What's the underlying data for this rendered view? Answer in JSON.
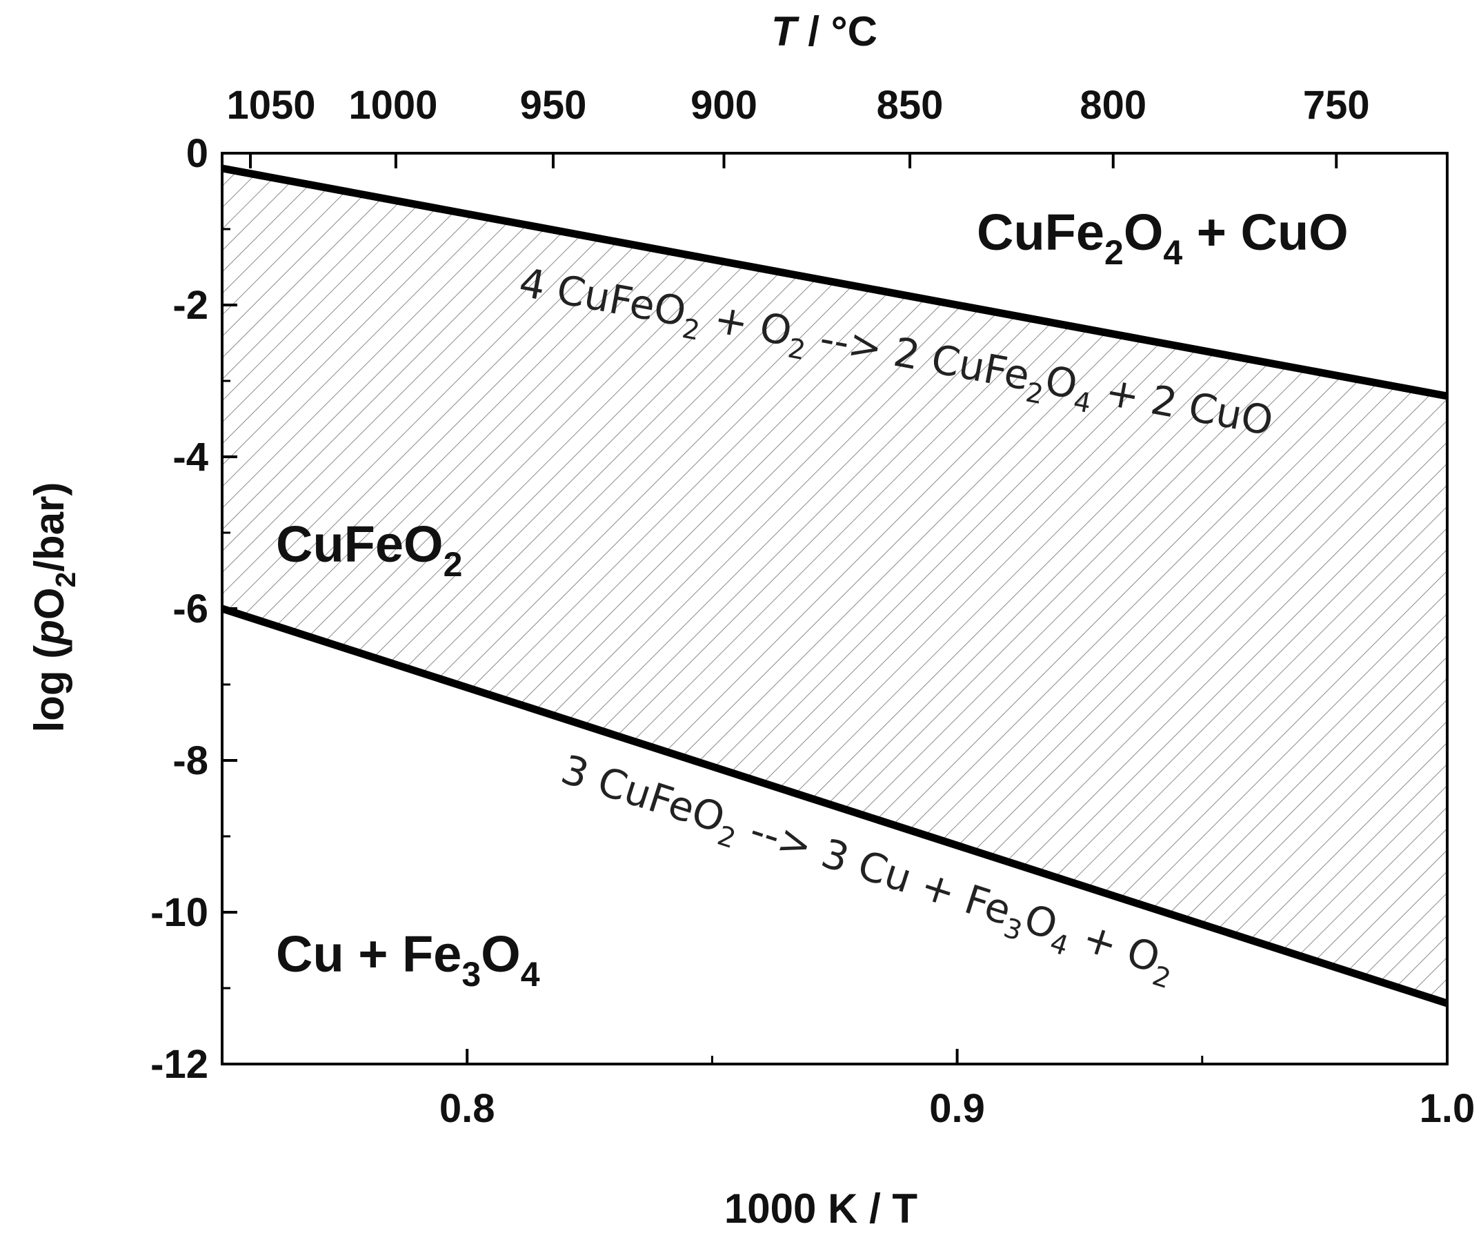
{
  "chart_data": {
    "type": "line",
    "xlabel": "1000 K / T",
    "ylabel_parts": [
      {
        "text": "log (",
        "style": "normal"
      },
      {
        "text": "p",
        "style": "italic"
      },
      {
        "text": "O",
        "style": "normal"
      },
      {
        "text": "2",
        "style": "sub"
      },
      {
        "text": "/bar)",
        "style": "normal"
      }
    ],
    "top_axis_label": {
      "italic": "T",
      "rest": " / °C"
    },
    "xlim": [
      0.75,
      1.0
    ],
    "ylim": [
      -12,
      0
    ],
    "x_ticks_major": [
      "0.8",
      "0.9",
      "1.0"
    ],
    "x_ticks_major_values": [
      0.8,
      0.9,
      1.0
    ],
    "x_ticks_minor_values": [
      0.75,
      0.85,
      0.95
    ],
    "y_ticks_major": [
      "0",
      "-2",
      "-4",
      "-6",
      "-8",
      "-10",
      "-12"
    ],
    "y_ticks_major_values": [
      0,
      -2,
      -4,
      -6,
      -8,
      -10,
      -12
    ],
    "top_ticks": [
      "1050",
      "1000",
      "950",
      "900",
      "850",
      "800",
      "750"
    ],
    "top_ticks_celsius": [
      1050,
      1000,
      950,
      900,
      850,
      800,
      750
    ],
    "grid": false,
    "series": [
      {
        "x": [
          0.75,
          1.0
        ],
        "y": [
          -0.2,
          -3.2
        ]
      },
      {
        "x": [
          0.75,
          1.0
        ],
        "y": [
          -6.0,
          -11.2
        ]
      }
    ],
    "shaded_region": {
      "between_series": [
        0,
        1
      ],
      "pattern": "diagonal hatch"
    },
    "region_labels": [
      {
        "id": "cufe2o4-cuo",
        "parts": [
          {
            "t": "CuFe",
            "s": "n"
          },
          {
            "t": "2",
            "s": "sub"
          },
          {
            "t": "O",
            "s": "n"
          },
          {
            "t": "4",
            "s": "sub"
          },
          {
            "t": " + CuO",
            "s": "n"
          }
        ]
      },
      {
        "id": "cufeo2",
        "parts": [
          {
            "t": "CuFeO",
            "s": "n"
          },
          {
            "t": "2",
            "s": "sub"
          }
        ]
      },
      {
        "id": "cu-fe3o4",
        "parts": [
          {
            "t": "Cu + Fe",
            "s": "n"
          },
          {
            "t": "3",
            "s": "sub"
          },
          {
            "t": "O",
            "s": "n"
          },
          {
            "t": "4",
            "s": "sub"
          }
        ]
      }
    ],
    "reaction_labels": [
      {
        "id": "reaction-upper",
        "parts": [
          {
            "t": "4 CuFeO",
            "s": "n"
          },
          {
            "t": "2",
            "s": "sub"
          },
          {
            "t": " + O",
            "s": "n"
          },
          {
            "t": "2",
            "s": "sub"
          },
          {
            "t": " --> 2 CuFe",
            "s": "n"
          },
          {
            "t": "2",
            "s": "sub"
          },
          {
            "t": "O",
            "s": "n"
          },
          {
            "t": "4",
            "s": "sub"
          },
          {
            "t": " + 2 CuO",
            "s": "n"
          }
        ]
      },
      {
        "id": "reaction-lower",
        "parts": [
          {
            "t": "3 CuFeO",
            "s": "n"
          },
          {
            "t": "2",
            "s": "sub"
          },
          {
            "t": " --> 3 Cu + Fe",
            "s": "n"
          },
          {
            "t": "3",
            "s": "sub"
          },
          {
            "t": "O",
            "s": "n"
          },
          {
            "t": "4",
            "s": "sub"
          },
          {
            "t": " + O",
            "s": "n"
          },
          {
            "t": "2",
            "s": "sub"
          }
        ]
      }
    ]
  }
}
